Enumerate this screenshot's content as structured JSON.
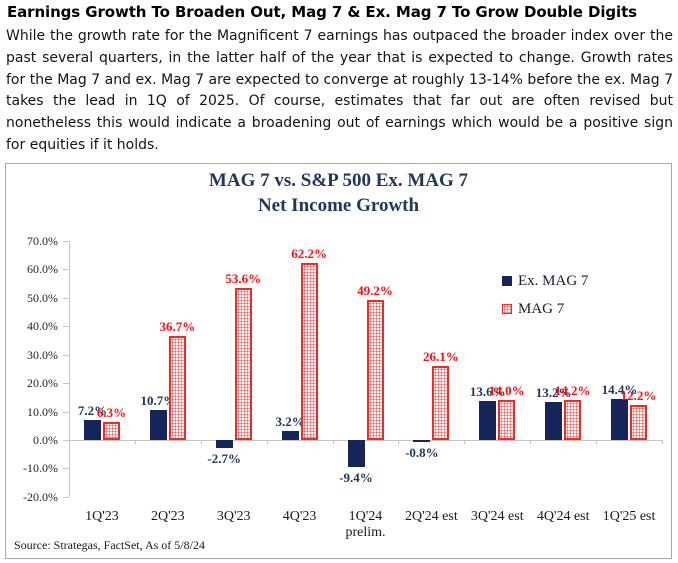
{
  "page": {
    "title": "Earnings Growth To Broaden Out, Mag 7 & Ex. Mag 7 To Grow Double Digits",
    "body": "While the growth rate for the Magnificent 7 earnings has outpaced the broader index over the past several quarters, in the latter half of the year that is expected to change. Growth rates for the Mag 7 and ex. Mag 7 are expected to converge at roughly 13-14% before the ex. Mag 7 takes the lead in 1Q of 2025. Of course, estimates that far out are often revised but nonetheless this would indicate a broadening out of earnings which would be a positive sign for equities if it holds."
  },
  "chart_data": {
    "type": "bar",
    "title_line1": "MAG 7 vs. S&P 500 Ex. MAG 7",
    "title_line2": "Net Income Growth",
    "categories": [
      [
        "1Q'23"
      ],
      [
        "2Q'23"
      ],
      [
        "3Q'23"
      ],
      [
        "4Q'23"
      ],
      [
        "1Q'24",
        "prelim."
      ],
      [
        "2Q'24 est"
      ],
      [
        "3Q'24 est"
      ],
      [
        "4Q'24 est"
      ],
      [
        "1Q'25 est"
      ]
    ],
    "series": [
      {
        "name": "Ex. MAG 7",
        "style": "solid",
        "color": "#16265a",
        "values": [
          7.2,
          10.7,
          -2.7,
          3.2,
          -9.4,
          -0.8,
          13.6,
          13.2,
          14.4
        ]
      },
      {
        "name": "MAG 7",
        "style": "dotted",
        "color": "#ee2b28",
        "values": [
          6.3,
          36.7,
          53.6,
          62.2,
          49.2,
          26.1,
          14.0,
          14.2,
          12.2
        ]
      }
    ],
    "ylabel": "",
    "xlabel": "",
    "ylim": [
      -20,
      70
    ],
    "ytick_step": 10,
    "ytick_format": "0.0%",
    "grid": "off",
    "legend_position": "upper-right",
    "source": "Source: Strategas, FactSet, As of 5/8/24"
  }
}
